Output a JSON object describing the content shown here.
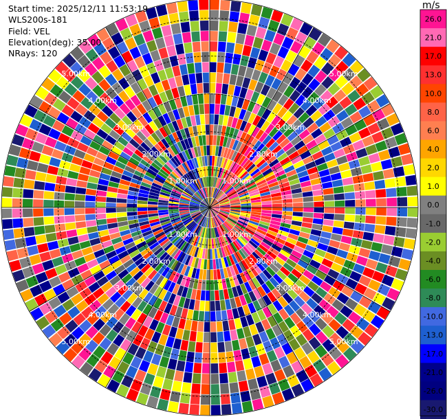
{
  "header": {
    "start_time": "Start time: 2025/12/11 11:53:19",
    "instrument": "WLS200s-181",
    "field": "Field: VEL",
    "elevation": "Elevation(deg): 35.00",
    "nrays": "NRays: 120"
  },
  "colorbar": {
    "unit": "m/s",
    "ticks": [
      "26.0",
      "21.0",
      "17.0",
      "13.0",
      "10.0",
      "8.0",
      "6.0",
      "4.0",
      "2.0",
      "1.0",
      "0.0",
      "-1.0",
      "-2.0",
      "-4.0",
      "-6.0",
      "-8.0",
      "-10.0",
      "-13.0",
      "-17.0",
      "-21.0",
      "-26.0",
      "-30.0"
    ],
    "colors": [
      "#ff1493",
      "#ff69b4",
      "#ff0000",
      "#ff3030",
      "#ff4500",
      "#ff6347",
      "#ff7f50",
      "#ffa500",
      "#ffd700",
      "#ffff00",
      "#808080",
      "#696969",
      "#9acd32",
      "#6b8e23",
      "#228b22",
      "#2e8b57",
      "#4169e1",
      "#1e5fd0",
      "#0000ff",
      "#00008b",
      "#000080",
      "#191970"
    ]
  },
  "chart_data": {
    "type": "heatmap",
    "projection": "polar PPI",
    "field": "VEL",
    "unit": "m/s",
    "n_rays": 120,
    "elevation_deg": 35.0,
    "range_rings_km": [
      1.0,
      2.0,
      3.0,
      4.0,
      5.0
    ],
    "ring_labels": [
      "1.00km",
      "2.00km",
      "3.00km",
      "4.00km",
      "5.00km"
    ],
    "max_range_km": 5.5,
    "azimuth_gridlines_deg": [
      0,
      30,
      60,
      90,
      120,
      150,
      180,
      210,
      240,
      270,
      300,
      330
    ],
    "value_range": [
      -30.0,
      26.0
    ]
  }
}
